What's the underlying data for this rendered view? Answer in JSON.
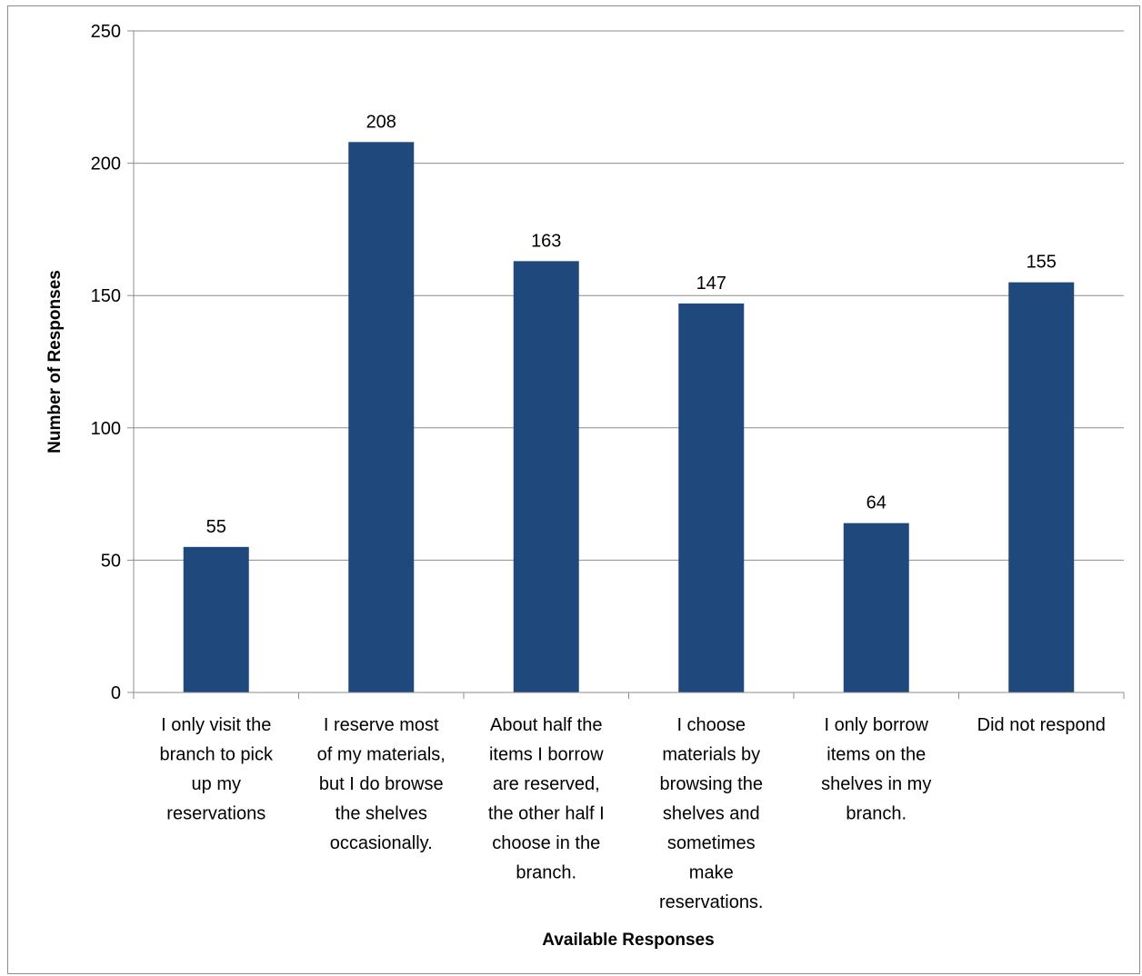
{
  "chart_data": {
    "type": "bar",
    "categories": [
      [
        "I only visit the",
        "branch to pick",
        "up my",
        "reservations"
      ],
      [
        "I reserve most",
        "of my materials,",
        "but I do browse",
        "the shelves",
        "occasionally."
      ],
      [
        "About half the",
        "items I borrow",
        "are reserved,",
        "the other half I",
        "choose in the",
        "branch."
      ],
      [
        "I choose",
        "materials by",
        "browsing the",
        "shelves and",
        "sometimes",
        "make",
        "reservations."
      ],
      [
        "I only borrow",
        "items on the",
        "shelves in my",
        "branch."
      ],
      [
        "Did not respond"
      ]
    ],
    "values": [
      55,
      208,
      163,
      147,
      64,
      155
    ],
    "data_labels": [
      "55",
      "208",
      "163",
      "147",
      "64",
      "155"
    ],
    "xlabel": "Available Responses",
    "ylabel": "Number of Responses",
    "ylim": [
      0,
      250
    ],
    "yticks": [
      0,
      50,
      100,
      150,
      200,
      250
    ],
    "ytick_labels": [
      "0",
      "50",
      "100",
      "150",
      "200",
      "250"
    ],
    "grid": true,
    "legend": "none",
    "bar_color": "#1f497d",
    "grid_color": "#8c8c8c"
  }
}
